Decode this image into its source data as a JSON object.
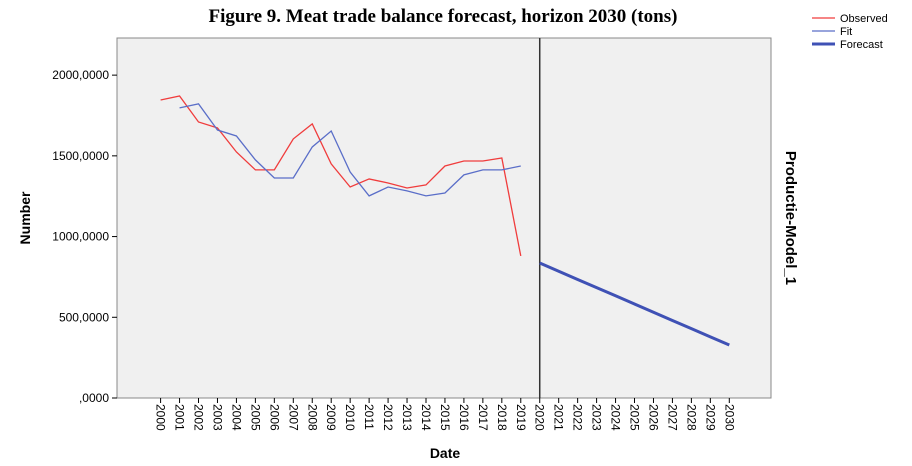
{
  "chart_data": {
    "type": "line",
    "title": "Figure 9. Meat trade balance forecast, horizon 2030 (tons)",
    "x_label": "Date",
    "y_label": "Number",
    "side_label": "Productie-Model_1",
    "x": [
      2000,
      2001,
      2002,
      2003,
      2004,
      2005,
      2006,
      2007,
      2008,
      2009,
      2010,
      2011,
      2012,
      2013,
      2014,
      2015,
      2016,
      2017,
      2018,
      2019,
      2020,
      2021,
      2022,
      2023,
      2024,
      2025,
      2026,
      2027,
      2028,
      2029,
      2030
    ],
    "xlim": [
      1997.7,
      2032.2
    ],
    "xticks": [
      2000,
      2001,
      2002,
      2003,
      2004,
      2005,
      2006,
      2007,
      2008,
      2009,
      2010,
      2011,
      2012,
      2013,
      2014,
      2015,
      2016,
      2017,
      2018,
      2019,
      2020,
      2021,
      2022,
      2023,
      2024,
      2025,
      2026,
      2027,
      2028,
      2029,
      2030
    ],
    "ylim": [
      0,
      2230
    ],
    "yticks": [
      {
        "value": 0,
        "label": ",0000"
      },
      {
        "value": 500,
        "label": "500,0000"
      },
      {
        "value": 1000,
        "label": "1000,0000"
      },
      {
        "value": 1500,
        "label": "1500,0000"
      },
      {
        "value": 2000,
        "label": "2000,0000"
      }
    ],
    "reference_line_x": 2020,
    "series": [
      {
        "name": "Observed",
        "color": "#f03c3c",
        "width": 1.3,
        "values": [
          1846,
          1871,
          1710,
          1673,
          1524,
          1413,
          1413,
          1605,
          1698,
          1450,
          1307,
          1357,
          1332,
          1301,
          1320,
          1437,
          1468,
          1468,
          1487,
          880,
          null,
          null,
          null,
          null,
          null,
          null,
          null,
          null,
          null,
          null,
          null
        ]
      },
      {
        "name": "Fit",
        "color": "#5a6ec8",
        "width": 1.3,
        "values": [
          null,
          1797,
          1822,
          1660,
          1623,
          1475,
          1363,
          1363,
          1555,
          1654,
          1400,
          1252,
          1307,
          1283,
          1252,
          1270,
          1382,
          1413,
          1413,
          1437,
          null,
          null,
          null,
          null,
          null,
          null,
          null,
          null,
          null,
          null,
          null
        ]
      },
      {
        "name": "Forecast",
        "color": "#3f51b5",
        "width": 3,
        "values": [
          null,
          null,
          null,
          null,
          null,
          null,
          null,
          null,
          null,
          null,
          null,
          null,
          null,
          null,
          null,
          null,
          null,
          null,
          null,
          null,
          836,
          785,
          734,
          684,
          633,
          582,
          531,
          480,
          430,
          379,
          328
        ]
      }
    ]
  }
}
